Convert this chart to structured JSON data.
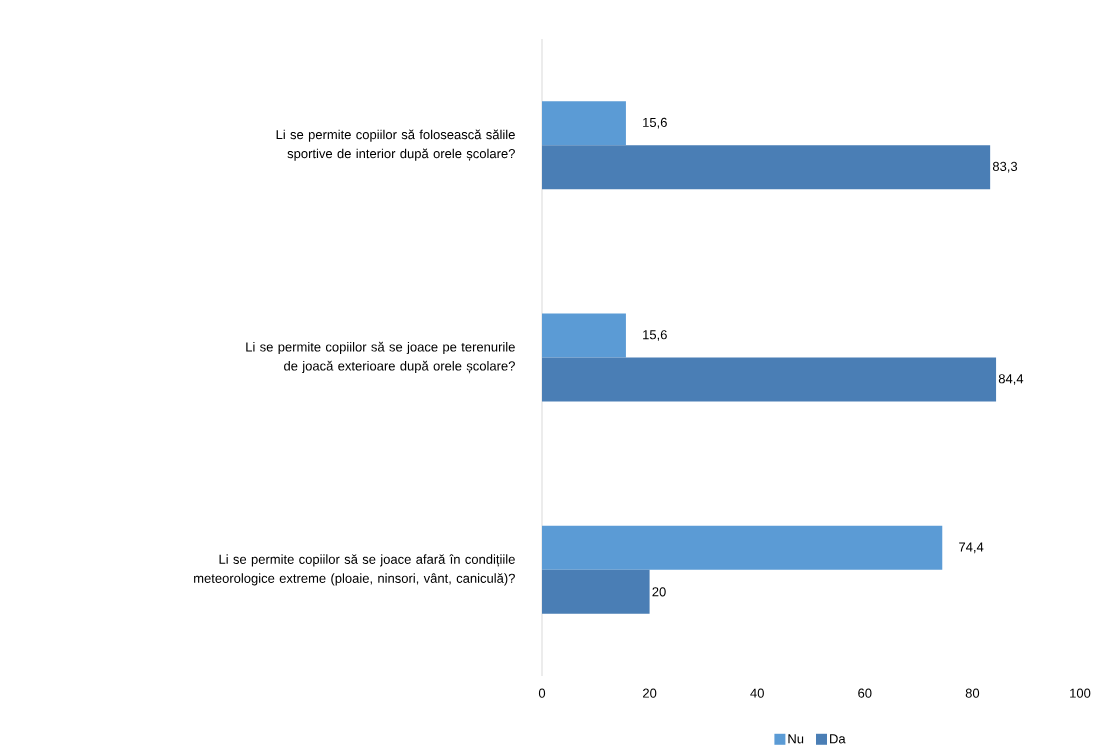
{
  "chart_data": {
    "type": "bar",
    "orientation": "horizontal",
    "categories": [
      "Li se permite copiilor să folosească sălile sportive de interior după orele școlare?",
      "Li se permite copiilor să se joace pe terenurile de joacă exterioare după orele școlare?",
      "Li se permite copiilor să se joace afară în condițiile meteorologice extreme (ploaie, ninsori, vânt, caniculă)?"
    ],
    "series": [
      {
        "name": "Nu",
        "color": "#5b9bd5",
        "values": [
          15.6,
          15.6,
          74.4
        ],
        "value_labels": [
          "15,6",
          "15,6",
          "74,4"
        ]
      },
      {
        "name": "Da",
        "color": "#4a7eb5",
        "values": [
          83.3,
          84.4,
          20
        ],
        "value_labels": [
          "83,3",
          "84,4",
          "20"
        ]
      }
    ],
    "xlim": [
      0,
      100
    ],
    "xticks": [
      0,
      20,
      40,
      60,
      80,
      100
    ],
    "grid": false,
    "legend": "bottom"
  }
}
